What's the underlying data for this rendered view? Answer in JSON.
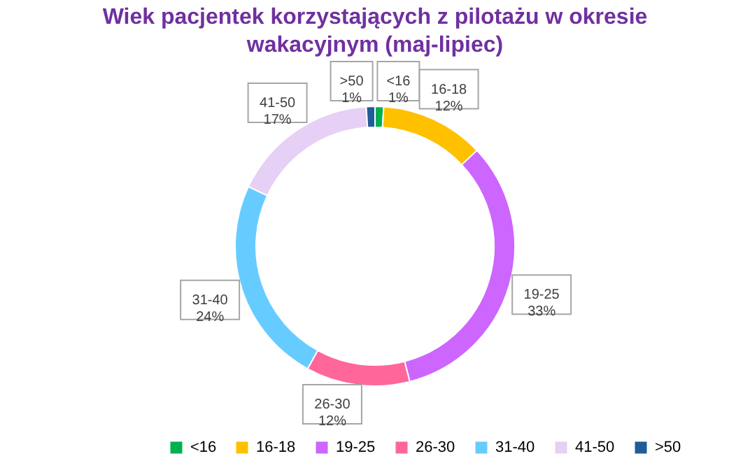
{
  "chart_data": {
    "type": "donut",
    "title": "Wiek pacjentek korzystających z pilotażu w okresie wakacyjnym (maj-lipiec)",
    "categories": [
      "<16",
      "16-18",
      "19-25",
      "26-30",
      "31-40",
      "41-50",
      ">50"
    ],
    "values": [
      1,
      12,
      33,
      12,
      24,
      17,
      1
    ],
    "colors": [
      "#00b050",
      "#ffc000",
      "#cc66ff",
      "#ff6699",
      "#66ccff",
      "#e6d0f5",
      "#1f5c99"
    ],
    "value_labels": [
      "1%",
      "12%",
      "33%",
      "12%",
      "24%",
      "17%",
      "1%"
    ],
    "legend": "bottom"
  }
}
